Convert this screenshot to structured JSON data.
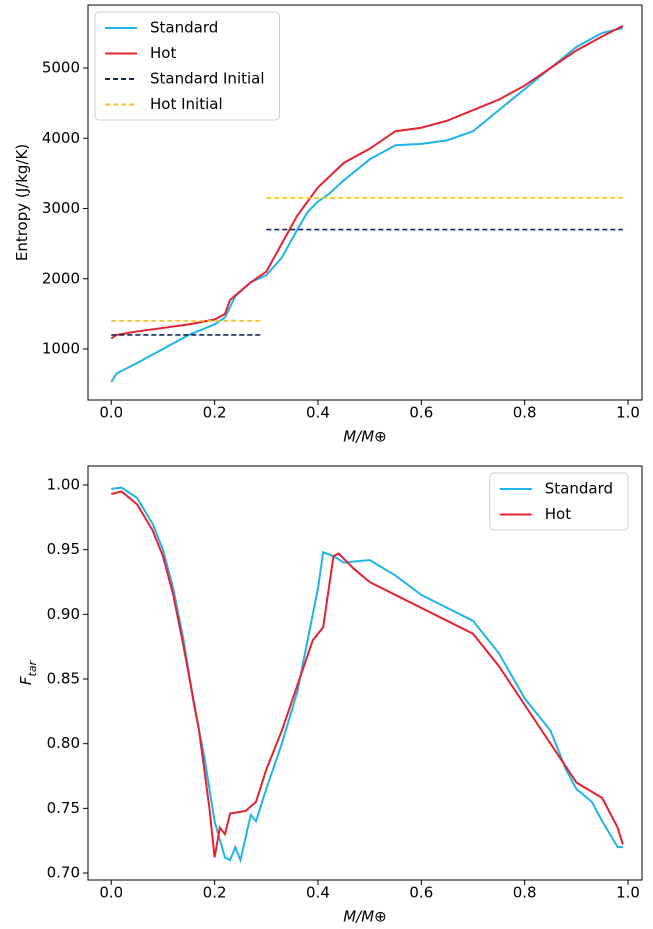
{
  "chart_data": [
    {
      "type": "line",
      "xlabel": "M/M⊕",
      "ylabel": [
        "Entropy (J/kg/K)"
      ],
      "legend": "upper left",
      "xlim": [
        -0.045,
        1.027
      ],
      "ylim": [
        274,
        5897
      ],
      "xticks": [
        {
          "value": 0,
          "label": "0.0"
        },
        0.2,
        0.4,
        0.6,
        0.8,
        {
          "value": 1,
          "label": "1.0"
        }
      ],
      "yticks": [
        1000,
        2000,
        3000,
        4000,
        5000
      ],
      "series": [
        {
          "name": "Standard",
          "color": "#1eb4ea",
          "linestyle": "solid",
          "x": [
            0,
            0.01,
            0.05,
            0.1,
            0.15,
            0.2,
            0.22,
            0.24,
            0.27,
            0.3,
            0.33,
            0.36,
            0.38,
            0.4,
            0.42,
            0.45,
            0.5,
            0.55,
            0.6,
            0.65,
            0.7,
            0.75,
            0.8,
            0.85,
            0.9,
            0.95,
            0.99
          ],
          "values": [
            530,
            650,
            800,
            1000,
            1200,
            1350,
            1450,
            1750,
            1950,
            2050,
            2300,
            2700,
            2950,
            3100,
            3200,
            3400,
            3700,
            3900,
            3920,
            3970,
            4100,
            4400,
            4700,
            5000,
            5300,
            5500,
            5570
          ]
        },
        {
          "name": "Hot",
          "color": "#e8202f",
          "linestyle": "solid",
          "x": [
            0,
            0.01,
            0.05,
            0.1,
            0.15,
            0.2,
            0.22,
            0.23,
            0.27,
            0.3,
            0.33,
            0.36,
            0.4,
            0.45,
            0.5,
            0.55,
            0.6,
            0.65,
            0.7,
            0.75,
            0.8,
            0.85,
            0.9,
            0.95,
            0.99
          ],
          "values": [
            1150,
            1200,
            1250,
            1300,
            1350,
            1420,
            1500,
            1700,
            1950,
            2100,
            2500,
            2900,
            3300,
            3650,
            3850,
            4100,
            4150,
            4250,
            4400,
            4550,
            4750,
            5000,
            5250,
            5450,
            5600
          ]
        },
        {
          "name": "Standard Initial",
          "color": "#10285a",
          "linestyle": "dashed",
          "x": [
            0,
            0.29,
            0.295,
            0.3,
            0.99
          ],
          "values": [
            1200,
            1200,
            null,
            2700,
            2700
          ]
        },
        {
          "name": "Hot Initial",
          "color": "#f5c518",
          "linestyle": "dashed",
          "x": [
            0,
            0.29,
            0.295,
            0.3,
            0.99
          ],
          "values": [
            1400,
            1400,
            null,
            3150,
            3150
          ]
        }
      ]
    },
    {
      "type": "line",
      "xlabel": "M/M⊕",
      "ylabel": [
        "F",
        "tar"
      ],
      "legend": "upper right",
      "xlim": [
        -0.045,
        1.027
      ],
      "ylim": [
        0.6946,
        1.0147
      ],
      "xticks": [
        {
          "value": 0,
          "label": "0.0"
        },
        0.2,
        0.4,
        0.6,
        0.8,
        {
          "value": 1,
          "label": "1.0"
        }
      ],
      "yticks": [
        {
          "value": 0.7,
          "label": "0.70"
        },
        0.75,
        {
          "value": 0.8,
          "label": "0.80"
        },
        0.85,
        {
          "value": 0.9,
          "label": "0.90"
        },
        0.95,
        {
          "value": 1,
          "label": "1.00"
        }
      ],
      "series": [
        {
          "name": "Standard",
          "color": "#1eb4ea",
          "linestyle": "solid",
          "x": [
            0,
            0.02,
            0.05,
            0.08,
            0.1,
            0.12,
            0.14,
            0.16,
            0.18,
            0.2,
            0.22,
            0.23,
            0.24,
            0.25,
            0.27,
            0.28,
            0.3,
            0.33,
            0.36,
            0.38,
            0.4,
            0.41,
            0.43,
            0.45,
            0.5,
            0.55,
            0.6,
            0.65,
            0.7,
            0.75,
            0.8,
            0.85,
            0.88,
            0.9,
            0.93,
            0.95,
            0.98,
            0.99
          ],
          "values": [
            0.997,
            0.998,
            0.99,
            0.97,
            0.95,
            0.92,
            0.88,
            0.83,
            0.79,
            0.74,
            0.712,
            0.71,
            0.72,
            0.71,
            0.745,
            0.74,
            0.765,
            0.8,
            0.84,
            0.88,
            0.92,
            0.948,
            0.945,
            0.94,
            0.942,
            0.93,
            0.915,
            0.905,
            0.895,
            0.87,
            0.835,
            0.81,
            0.78,
            0.765,
            0.755,
            0.74,
            0.72,
            0.72
          ]
        },
        {
          "name": "Hot",
          "color": "#e8202f",
          "linestyle": "solid",
          "x": [
            0,
            0.02,
            0.05,
            0.08,
            0.1,
            0.12,
            0.14,
            0.17,
            0.19,
            0.2,
            0.21,
            0.22,
            0.23,
            0.26,
            0.28,
            0.3,
            0.33,
            0.36,
            0.39,
            0.41,
            0.43,
            0.44,
            0.47,
            0.5,
            0.55,
            0.6,
            0.65,
            0.7,
            0.75,
            0.8,
            0.85,
            0.9,
            0.95,
            0.98,
            0.99
          ],
          "values": [
            0.993,
            0.995,
            0.985,
            0.965,
            0.945,
            0.915,
            0.875,
            0.81,
            0.75,
            0.712,
            0.735,
            0.73,
            0.746,
            0.748,
            0.755,
            0.78,
            0.81,
            0.845,
            0.88,
            0.89,
            0.945,
            0.947,
            0.935,
            0.925,
            0.915,
            0.905,
            0.895,
            0.885,
            0.86,
            0.83,
            0.8,
            0.77,
            0.758,
            0.735,
            0.722
          ]
        }
      ]
    }
  ]
}
